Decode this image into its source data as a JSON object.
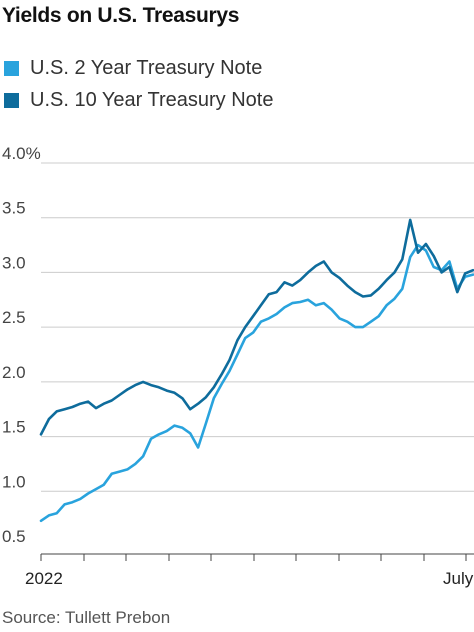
{
  "chart_data": {
    "type": "line",
    "title": "Yields on U.S. Treasurys",
    "source": "Source: Tullett Prebon",
    "yunit": "%",
    "ylim": [
      0.5,
      4.0
    ],
    "yticks": [
      0.5,
      1.0,
      1.5,
      2.0,
      2.5,
      3.0,
      3.5,
      4.0
    ],
    "ytick_labels": [
      "0.5",
      "1.0",
      "1.5",
      "2.0",
      "2.5",
      "3.0",
      "3.5",
      "4.0%"
    ],
    "xtick_labels": [
      "2022",
      "July"
    ],
    "grid": true,
    "legend_position": "top-left",
    "series": [
      {
        "name": "U.S. 2 Year Treasury Note",
        "color": "#29a3dd",
        "values": [
          0.73,
          0.78,
          0.8,
          0.88,
          0.9,
          0.93,
          0.98,
          1.02,
          1.06,
          1.16,
          1.18,
          1.2,
          1.25,
          1.32,
          1.48,
          1.52,
          1.55,
          1.6,
          1.58,
          1.53,
          1.4,
          1.62,
          1.85,
          1.98,
          2.1,
          2.25,
          2.4,
          2.45,
          2.55,
          2.58,
          2.62,
          2.68,
          2.72,
          2.73,
          2.75,
          2.7,
          2.72,
          2.66,
          2.58,
          2.55,
          2.5,
          2.5,
          2.55,
          2.6,
          2.7,
          2.76,
          2.85,
          3.14,
          3.25,
          3.2,
          3.05,
          3.02,
          3.1,
          2.85,
          2.96,
          2.98
        ]
      },
      {
        "name": "U.S. 10 Year Treasury Note",
        "color": "#0e6c9c",
        "values": [
          1.52,
          1.66,
          1.73,
          1.75,
          1.77,
          1.8,
          1.82,
          1.76,
          1.8,
          1.83,
          1.88,
          1.93,
          1.97,
          2.0,
          1.97,
          1.95,
          1.92,
          1.9,
          1.85,
          1.75,
          1.8,
          1.86,
          1.95,
          2.07,
          2.2,
          2.38,
          2.5,
          2.6,
          2.7,
          2.8,
          2.82,
          2.91,
          2.88,
          2.93,
          3.0,
          3.06,
          3.1,
          3.0,
          2.95,
          2.88,
          2.82,
          2.78,
          2.79,
          2.85,
          2.93,
          3.0,
          3.12,
          3.48,
          3.18,
          3.26,
          3.15,
          3.0,
          3.05,
          2.82,
          2.99,
          3.02
        ]
      }
    ]
  }
}
